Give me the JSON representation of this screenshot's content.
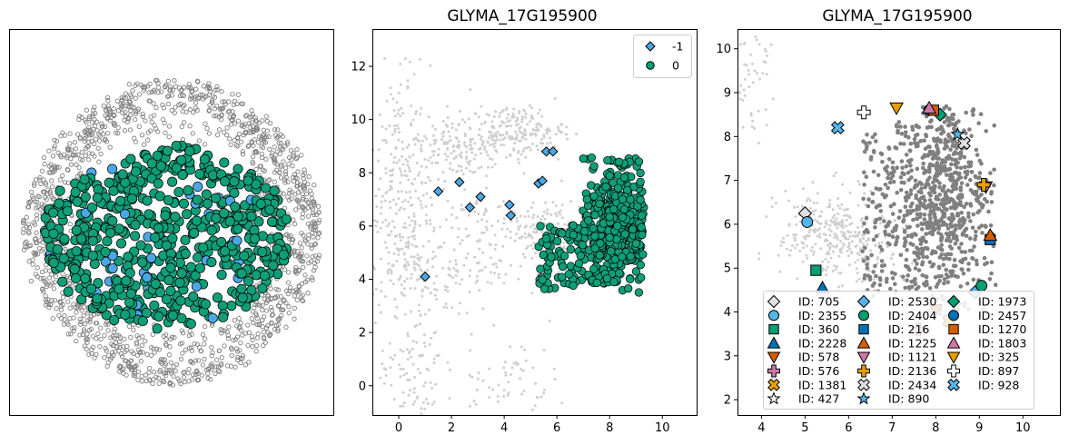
{
  "colors": {
    "teal": "#0e9f78",
    "blue": "#4aa8e6",
    "gray": "#808080",
    "lightgray": "#cfcfcf",
    "edge": "#000000"
  },
  "chart_data": [
    {
      "type": "scatter",
      "panel": "left-spatial",
      "title": "",
      "xlabel": "",
      "ylabel": "",
      "axis_ticks": false,
      "note": ""
    },
    {
      "type": "scatter",
      "panel": "middle-embedding",
      "title": "GLYMA_17G195900",
      "xlabel": "",
      "ylabel": "",
      "xlim": [
        -1,
        11.3
      ],
      "ylim": [
        -1.1,
        13.4
      ],
      "xticks": [
        0,
        2,
        4,
        6,
        8,
        10
      ],
      "yticks": [
        0,
        2,
        4,
        6,
        8,
        10,
        12
      ],
      "legend_position": "top-right",
      "legend": [
        {
          "label": "-1",
          "marker": "diamond",
          "color": "#4aa8e6"
        },
        {
          "label": "0",
          "marker": "circle",
          "color": "#0e9f78"
        }
      ],
      "series": [
        {
          "name": "-1",
          "marker": "diamond",
          "points": [
            [
              1.0,
              4.1
            ],
            [
              1.5,
              7.3
            ],
            [
              2.3,
              7.65
            ],
            [
              2.7,
              6.7
            ],
            [
              3.1,
              7.1
            ],
            [
              4.2,
              6.8
            ],
            [
              4.25,
              6.4
            ],
            [
              5.3,
              7.6
            ],
            [
              5.45,
              7.7
            ],
            [
              5.6,
              8.8
            ],
            [
              5.85,
              8.8
            ]
          ]
        },
        {
          "name": "0",
          "marker": "circle",
          "cluster_center": [
            8.0,
            6.2
          ],
          "cluster_extent_x": [
            5.0,
            9.3
          ],
          "cluster_extent_y": [
            3.4,
            8.6
          ]
        }
      ]
    },
    {
      "type": "scatter",
      "panel": "right-embedding",
      "title": "GLYMA_17G195900",
      "xlabel": "",
      "ylabel": "",
      "xlim": [
        3.45,
        10.85
      ],
      "ylim": [
        1.65,
        10.45
      ],
      "xticks": [
        4,
        5,
        6,
        7,
        8,
        9,
        10
      ],
      "yticks": [
        2,
        3,
        4,
        5,
        6,
        7,
        8,
        9,
        10
      ],
      "legend_position": "lower-center",
      "series": [
        {
          "name": "ID: 705",
          "marker": "diamond",
          "color": "#e0e0e0",
          "x": 5.0,
          "y": 6.25
        },
        {
          "name": "ID: 2355",
          "marker": "circle",
          "color": "#56b4e9",
          "x": 5.05,
          "y": 6.05
        },
        {
          "name": "ID: 360",
          "marker": "square",
          "color": "#009e73",
          "x": 5.25,
          "y": 4.95
        },
        {
          "name": "ID: 2228",
          "marker": "triangle-up",
          "color": "#0072b2",
          "x": 5.4,
          "y": 4.55
        },
        {
          "name": "ID: 578",
          "marker": "triangle-down",
          "color": "#d55e00",
          "x": 8.0,
          "y": 4.05
        },
        {
          "name": "ID: 576",
          "marker": "plus",
          "color": "#cc79a7",
          "x": 7.6,
          "y": 3.6
        },
        {
          "name": "ID: 1381",
          "marker": "x",
          "color": "#e69f00",
          "x": 8.3,
          "y": 3.8
        },
        {
          "name": "ID: 427",
          "marker": "star",
          "color": "#ffffff",
          "x": 8.45,
          "y": 4.15
        },
        {
          "name": "ID: 2530",
          "marker": "diamond",
          "color": "#56b4e9",
          "x": 8.9,
          "y": 4.45
        },
        {
          "name": "ID: 2404",
          "marker": "circle",
          "color": "#009e73",
          "x": 9.05,
          "y": 4.6
        },
        {
          "name": "ID: 216",
          "marker": "square",
          "color": "#0072b2",
          "x": 9.25,
          "y": 5.65
        },
        {
          "name": "ID: 1225",
          "marker": "triangle-up",
          "color": "#d55e00",
          "x": 9.25,
          "y": 5.75
        },
        {
          "name": "ID: 1121",
          "marker": "triangle-down",
          "color": "#cc79a7",
          "x": 9.15,
          "y": 6.85
        },
        {
          "name": "ID: 2136",
          "marker": "plus",
          "color": "#e69f00",
          "x": 9.1,
          "y": 6.9
        },
        {
          "name": "ID: 2434",
          "marker": "x",
          "color": "#e0e0e0",
          "x": 8.65,
          "y": 7.85
        },
        {
          "name": "ID: 890",
          "marker": "star",
          "color": "#56b4e9",
          "x": 8.5,
          "y": 8.05
        },
        {
          "name": "ID: 1973",
          "marker": "diamond",
          "color": "#009e73",
          "x": 8.1,
          "y": 8.5
        },
        {
          "name": "ID: 2457",
          "marker": "circle",
          "color": "#0072b2",
          "x": 7.85,
          "y": 8.6
        },
        {
          "name": "ID: 1270",
          "marker": "square",
          "color": "#d55e00",
          "x": 7.95,
          "y": 8.6
        },
        {
          "name": "ID: 1803",
          "marker": "triangle-up",
          "color": "#cc79a7",
          "x": 7.85,
          "y": 8.65
        },
        {
          "name": "ID: 325",
          "marker": "triangle-down",
          "color": "#e69f00",
          "x": 7.1,
          "y": 8.65
        },
        {
          "name": "ID: 897",
          "marker": "plus",
          "color": "#ffffff",
          "x": 6.35,
          "y": 8.55
        },
        {
          "name": "ID: 928",
          "marker": "x",
          "color": "#56b4e9",
          "x": 5.75,
          "y": 8.2
        }
      ]
    }
  ]
}
